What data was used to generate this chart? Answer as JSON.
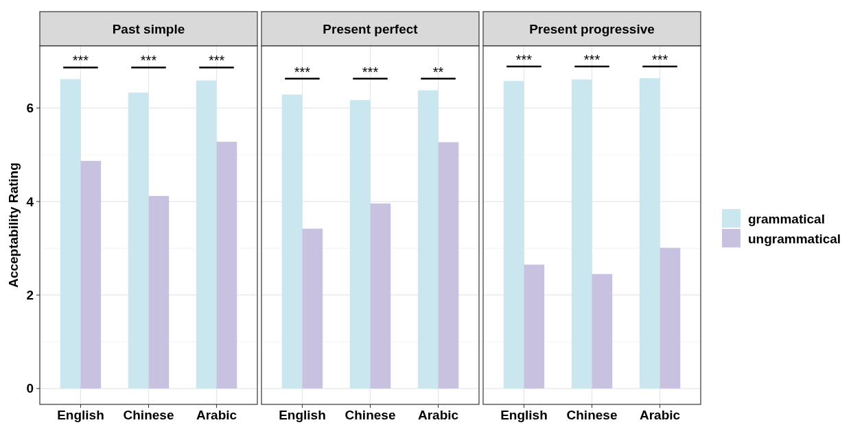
{
  "chart_data": [
    {
      "type": "bar",
      "title": "Past simple",
      "ylabel": "Acceptability Rating",
      "categories": [
        "English",
        "Chinese",
        "Arabic"
      ],
      "ylim": [
        -0.34,
        7.33
      ],
      "yticks": [
        0,
        2,
        4,
        6
      ],
      "grid": true,
      "legend": false,
      "series": [
        {
          "color": "#cae6ee",
          "values": [
            6.62,
            6.33,
            6.59
          ]
        },
        {
          "color": "#c8c1e0",
          "values": [
            4.87,
            4.12,
            5.28
          ]
        }
      ],
      "annotations": [
        "***",
        "***",
        "***"
      ]
    },
    {
      "type": "bar",
      "title": "Present perfect",
      "categories": [
        "English",
        "Chinese",
        "Arabic"
      ],
      "ylim": [
        -0.34,
        7.33
      ],
      "yticks": [
        0,
        2,
        4,
        6
      ],
      "grid": true,
      "legend": false,
      "tick_labels": "x",
      "series": [
        {
          "color": "#cae6ee",
          "values": [
            6.29,
            6.17,
            6.38
          ]
        },
        {
          "color": "#c8c1e0",
          "values": [
            3.42,
            3.96,
            5.27
          ]
        }
      ],
      "annotations": [
        "***",
        "***",
        "**"
      ]
    },
    {
      "type": "bar",
      "title": "Present progressive",
      "categories": [
        "English",
        "Chinese",
        "Arabic"
      ],
      "ylim": [
        -0.34,
        7.33
      ],
      "yticks": [
        0,
        2,
        4,
        6
      ],
      "grid": true,
      "legend": "right",
      "tick_labels": "x",
      "series": [
        {
          "name": "grammatical",
          "color": "#cae6ee",
          "values": [
            6.58,
            6.61,
            6.64
          ]
        },
        {
          "name": "ungrammatical",
          "color": "#c8c1e0",
          "values": [
            2.65,
            2.45,
            3.01
          ]
        }
      ],
      "annotations": [
        "***",
        "***",
        "***"
      ]
    }
  ]
}
